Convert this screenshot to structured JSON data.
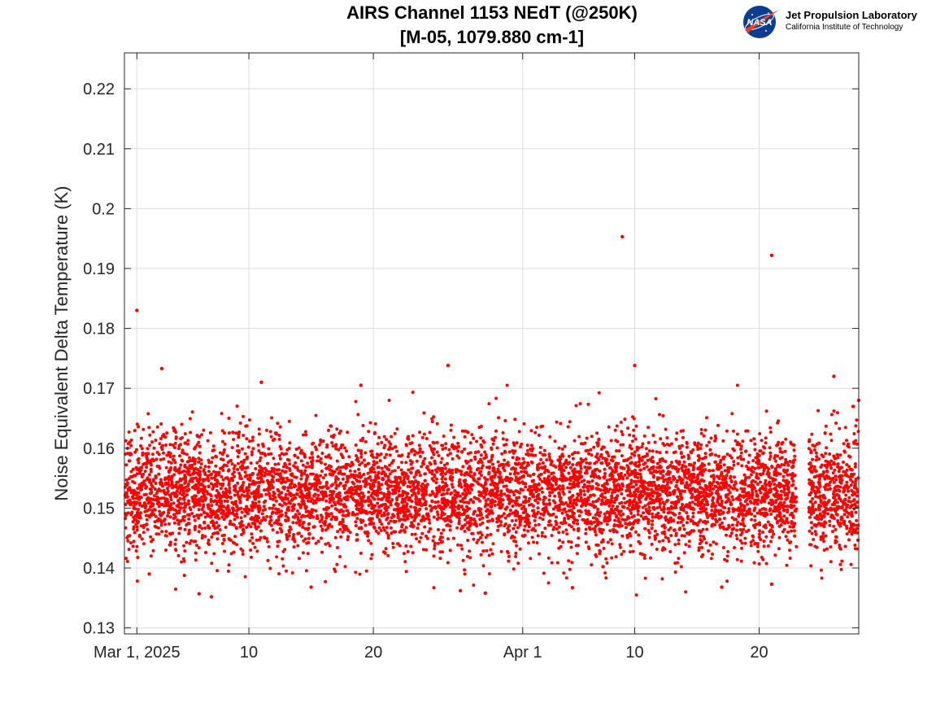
{
  "chart_data": {
    "type": "scatter",
    "title": "AIRS Channel 1153 NEdT (@250K)",
    "subtitle": "[M-05, 1079.880 cm-1]",
    "xlabel": "",
    "ylabel": "Noise Equivalent Delta Temperature (K)",
    "x_axis_type": "date",
    "xlim": [
      "2025-02-28",
      "2025-04-28"
    ],
    "ylim": [
      0.129,
      0.226
    ],
    "x_ticks": [
      {
        "date": "2025-03-01",
        "label": "Mar 1, 2025"
      },
      {
        "date": "2025-03-10",
        "label": "10"
      },
      {
        "date": "2025-03-20",
        "label": "20"
      },
      {
        "date": "2025-04-01",
        "label": "Apr 1"
      },
      {
        "date": "2025-04-10",
        "label": "10"
      },
      {
        "date": "2025-04-20",
        "label": "20"
      }
    ],
    "y_ticks": [
      0.13,
      0.14,
      0.15,
      0.16,
      0.17,
      0.18,
      0.19,
      0.2,
      0.21,
      0.22
    ],
    "y_tick_labels": [
      "0.13",
      "0.14",
      "0.15",
      "0.16",
      "0.17",
      "0.18",
      "0.19",
      "0.2",
      "0.21",
      "0.22"
    ],
    "grid": true,
    "data_gap": [
      "2025-04-23",
      "2025-04-24"
    ],
    "series": [
      {
        "color": "#ff0000",
        "marker": "dot",
        "typical_value": 0.1525,
        "typical_spread": 0.005,
        "points": [
          [
            "2025-03-01",
            0.183
          ],
          [
            "2025-03-03",
            0.1733
          ],
          [
            "2025-03-11",
            0.171
          ],
          [
            "2025-03-19",
            0.1705
          ],
          [
            "2025-03-26",
            0.1738
          ],
          [
            "2025-04-09",
            0.1953
          ],
          [
            "2025-04-10",
            0.1738
          ],
          [
            "2025-04-21",
            0.1922
          ],
          [
            "2025-04-26",
            0.172
          ],
          [
            "2025-04-28",
            0.168
          ],
          [
            "2025-03-06",
            0.1357
          ],
          [
            "2025-03-07",
            0.1352
          ],
          [
            "2025-03-15",
            0.1368
          ],
          [
            "2025-03-27",
            0.1362
          ],
          [
            "2025-03-29",
            0.1358
          ],
          [
            "2025-04-17",
            0.1368
          ],
          [
            "2025-04-21",
            0.1373
          ],
          [
            "2025-04-05",
            0.1367
          ],
          [
            "2025-03-02",
            0.139
          ]
        ]
      }
    ]
  },
  "logo": {
    "nasa_text": "NASA",
    "name": "Jet Propulsion Laboratory",
    "subtitle": "California Institute of Technology",
    "colors": {
      "nasa_blue": "#0b3d91",
      "nasa_red": "#fc3d21"
    }
  }
}
